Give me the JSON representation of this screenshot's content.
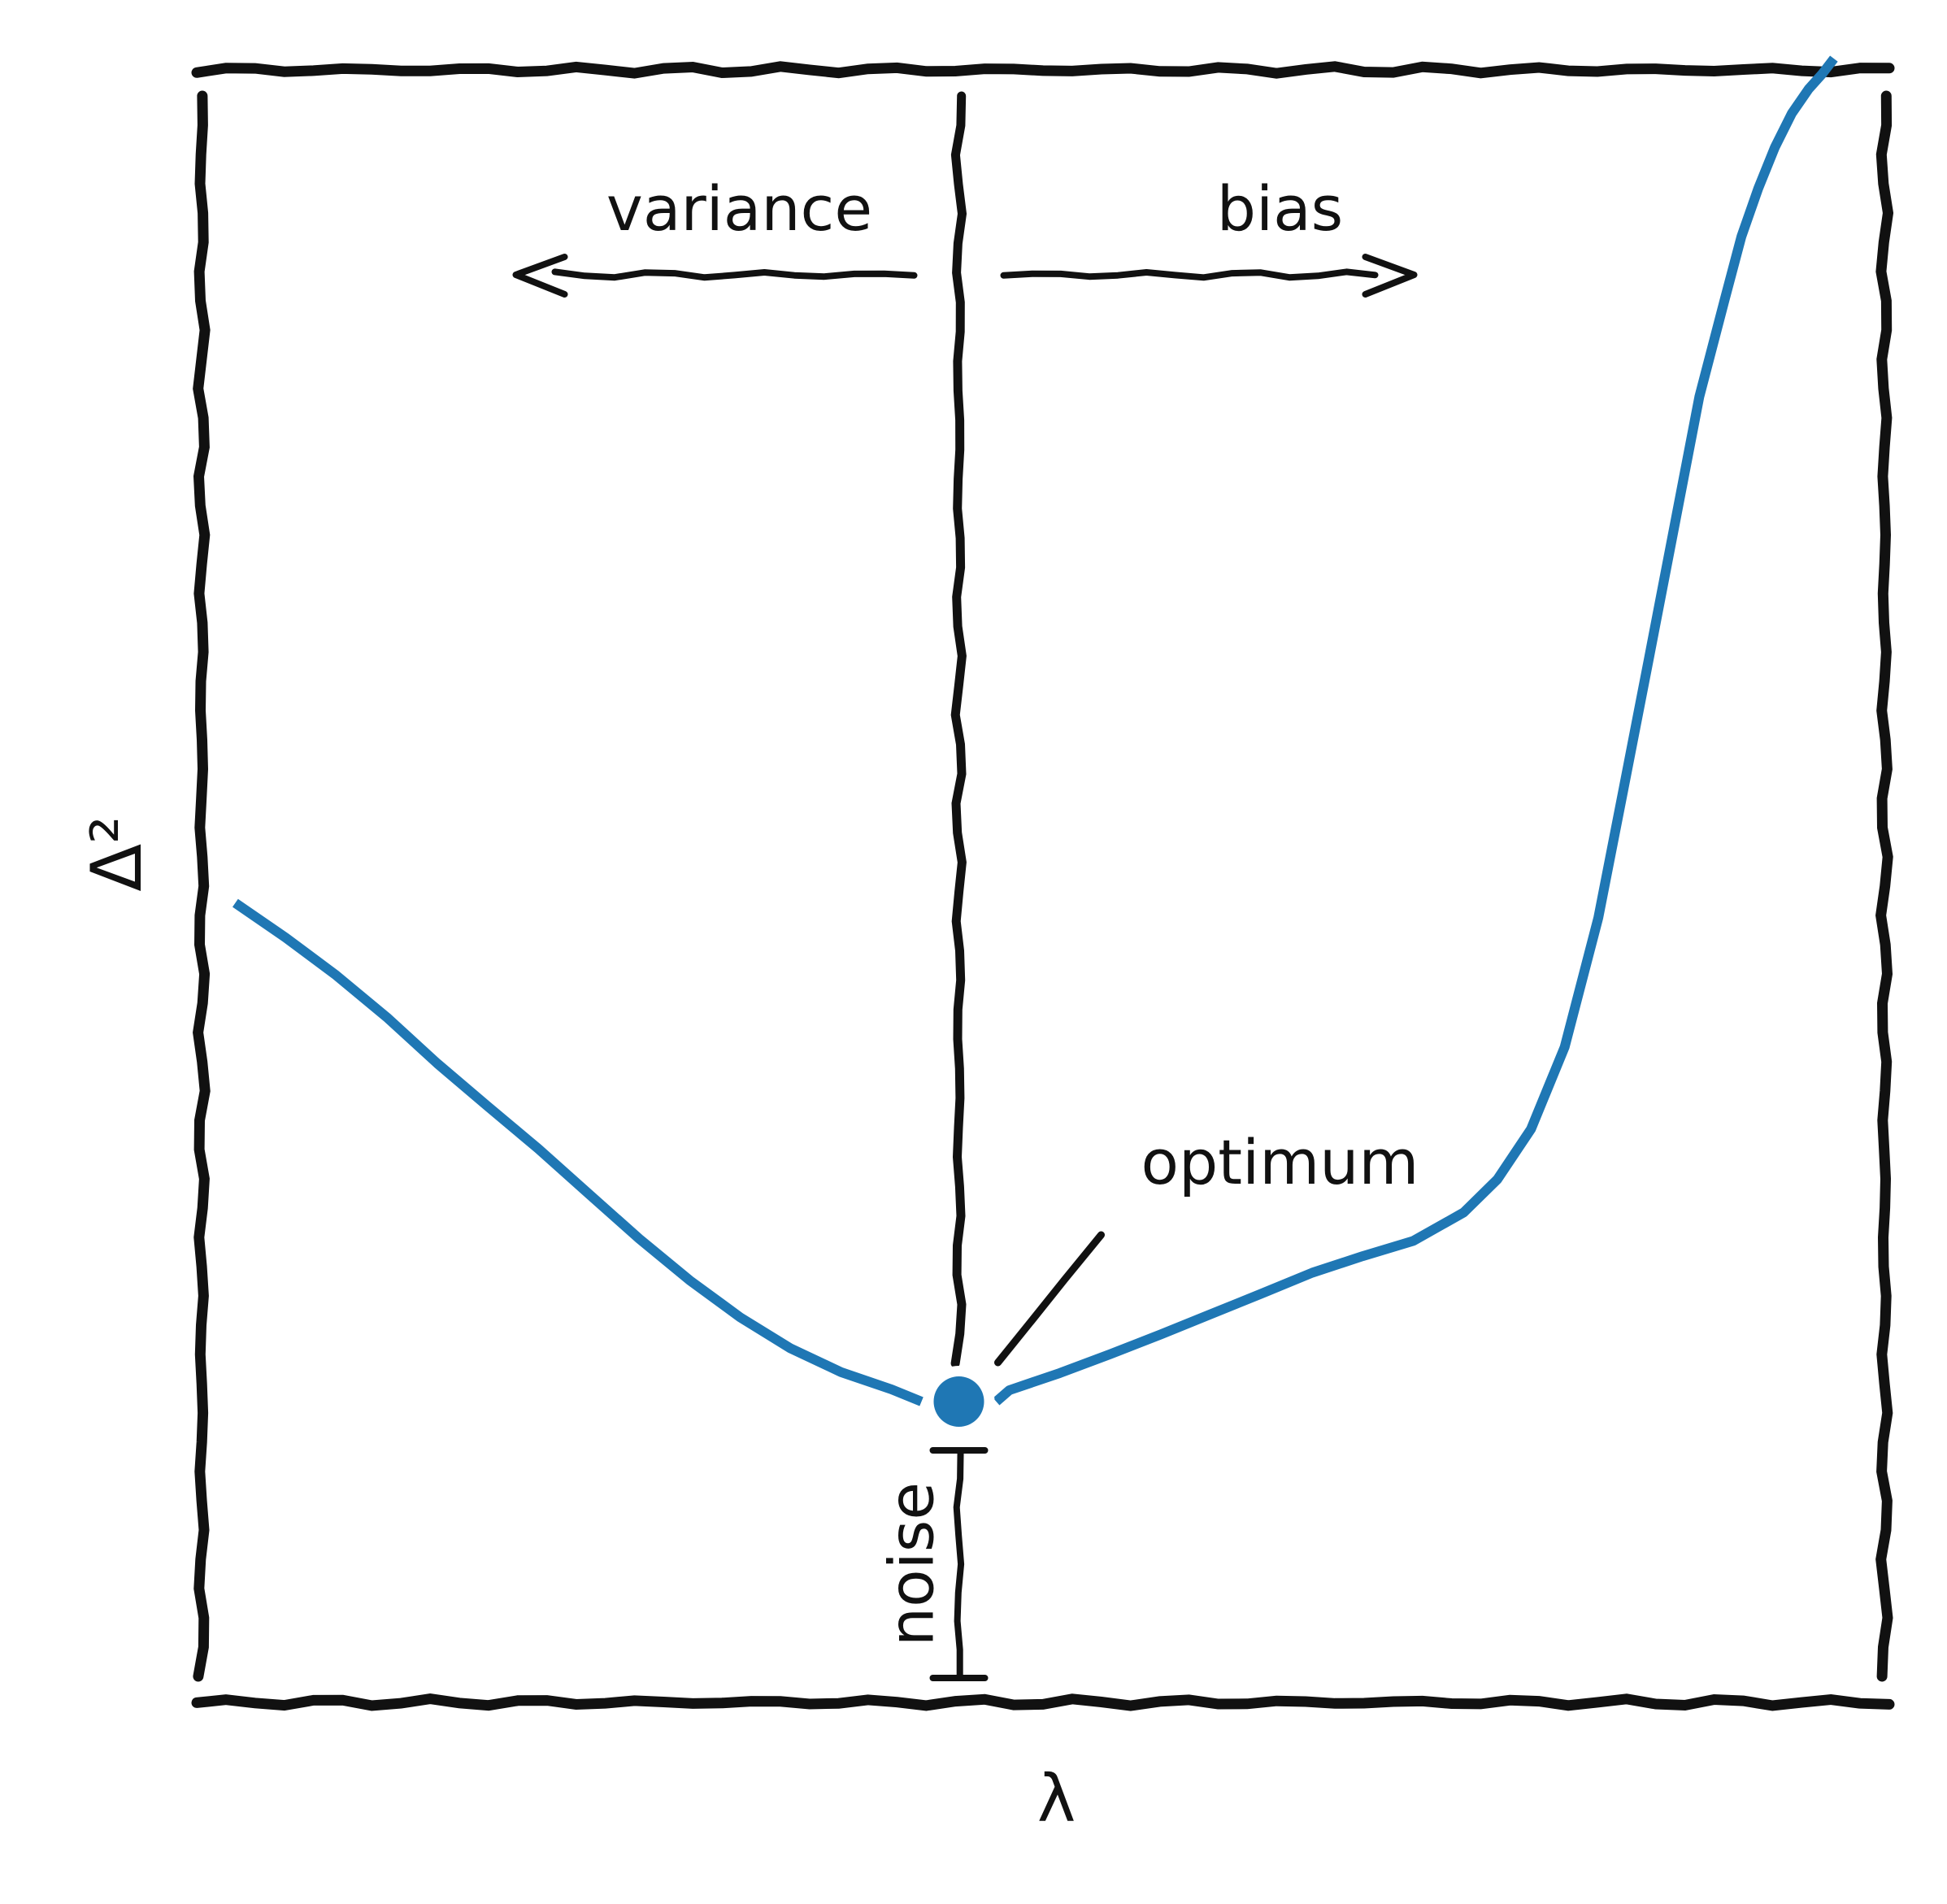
{
  "chart_data": {
    "type": "line",
    "title": "",
    "xlabel": "λ",
    "ylabel": "Δ²",
    "xlim": [
      0,
      1
    ],
    "ylim": [
      0,
      1
    ],
    "ticks": "none",
    "grid": false,
    "style": "hand-drawn (xkcd)",
    "colors": {
      "curve": "#1f77b4",
      "ink": "#111111"
    },
    "series": [
      {
        "x": [
          0.02,
          0.05,
          0.08,
          0.11,
          0.14,
          0.17,
          0.2,
          0.23,
          0.26,
          0.29,
          0.32,
          0.35,
          0.38,
          0.41,
          0.43,
          0.45,
          0.48,
          0.51,
          0.54,
          0.57,
          0.6,
          0.63,
          0.66,
          0.69,
          0.72,
          0.75,
          0.77,
          0.79,
          0.81,
          0.83,
          0.845,
          0.86,
          0.875,
          0.89,
          0.905,
          0.915,
          0.925,
          0.935,
          0.945,
          0.955,
          0.963,
          0.97
        ],
        "y": [
          0.49,
          0.468,
          0.445,
          0.42,
          0.392,
          0.365,
          0.338,
          0.31,
          0.283,
          0.258,
          0.235,
          0.215,
          0.2,
          0.19,
          0.185,
          0.183,
          0.19,
          0.2,
          0.212,
          0.225,
          0.238,
          0.25,
          0.262,
          0.272,
          0.282,
          0.3,
          0.32,
          0.35,
          0.4,
          0.48,
          0.56,
          0.64,
          0.72,
          0.8,
          0.86,
          0.9,
          0.93,
          0.955,
          0.975,
          0.99,
          1.0,
          1.01
        ]
      }
    ],
    "optimum": {
      "x": 0.45,
      "y": 0.183,
      "label": "optimum"
    },
    "divider_x": 0.45,
    "noise": {
      "y_from": 0.0,
      "y_to": 0.153,
      "label": "noise"
    },
    "annotations": {
      "variance": "variance",
      "bias": "bias"
    }
  }
}
